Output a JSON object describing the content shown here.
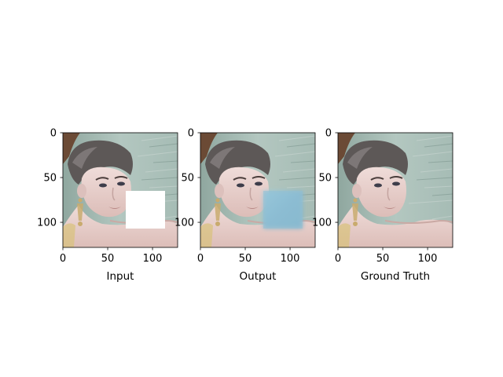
{
  "panels": [
    {
      "id": "input",
      "xlabel": "Input",
      "mask": "white",
      "xticks": [
        "0",
        "50",
        "100"
      ],
      "yticks": [
        "0",
        "50",
        "100"
      ]
    },
    {
      "id": "output",
      "xlabel": "Output",
      "mask": "blur",
      "xticks": [
        "0",
        "50",
        "100"
      ],
      "yticks": [
        "0",
        "50",
        "100"
      ]
    },
    {
      "id": "ground_truth",
      "xlabel": "Ground Truth",
      "mask": "none",
      "xticks": [
        "0",
        "50",
        "100"
      ],
      "yticks": [
        "0",
        "50",
        "100"
      ]
    }
  ],
  "image_extent": [
    0,
    128
  ],
  "mask_region": {
    "x": [
      70,
      113
    ],
    "y": [
      63,
      106
    ]
  },
  "colors": {
    "wall": "#9fb5ad",
    "wall_dark": "#7f9790",
    "hair": "#5b5554",
    "skin": "#e9d3d0",
    "skin_shadow": "#c7a7a3",
    "earring": "#c9ab6e",
    "blur_patch": "#8fc0d6"
  }
}
